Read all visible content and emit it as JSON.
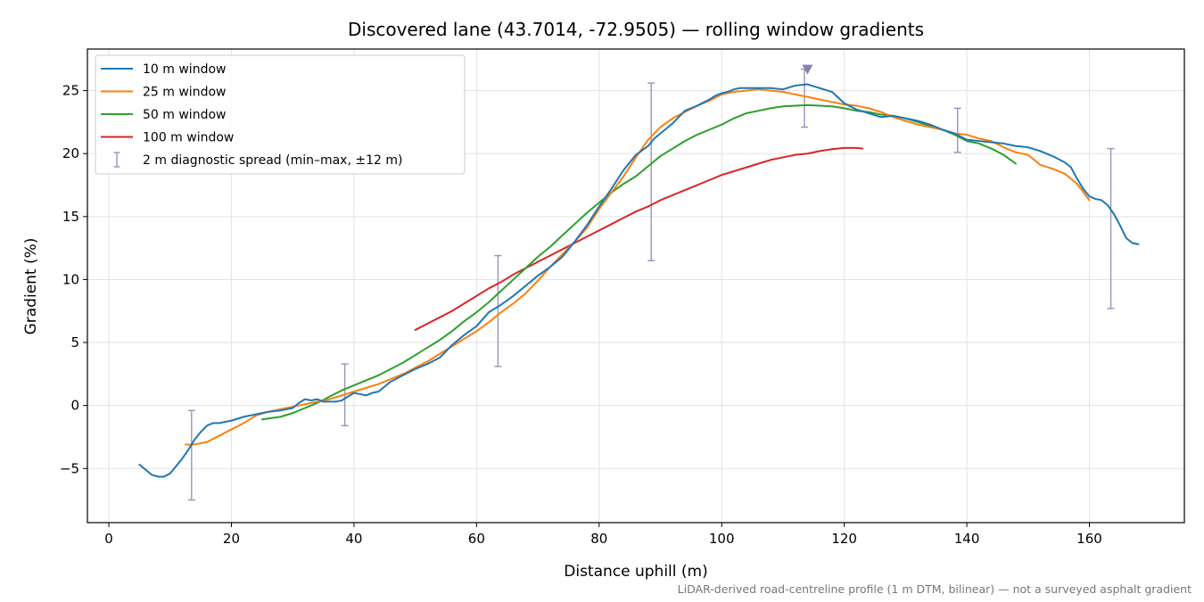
{
  "chart_data": {
    "type": "line",
    "title": "Discovered lane (43.7014, -72.9505) — rolling window gradients",
    "xlabel": "Distance uphill (m)",
    "ylabel": "Gradient (%)",
    "xlim": [
      -3.5,
      175.5
    ],
    "ylim": [
      -9.3,
      28.3
    ],
    "xticks": [
      0,
      20,
      40,
      60,
      80,
      100,
      120,
      140,
      160
    ],
    "yticks": [
      -5,
      0,
      5,
      10,
      15,
      20,
      25
    ],
    "grid": true,
    "legend_position": "top-left",
    "series": [
      {
        "name": "10 m window",
        "color": "#1f77b4",
        "x": [
          5,
          6,
          7,
          8,
          9,
          10,
          11,
          12,
          13,
          14,
          15,
          16,
          17,
          18,
          19,
          20,
          22,
          24,
          26,
          28,
          30,
          31,
          32,
          33,
          34,
          35,
          36,
          37,
          38,
          39,
          40,
          41,
          42,
          43,
          44,
          46,
          48,
          50,
          52,
          54,
          56,
          58,
          60,
          62,
          64,
          66,
          68,
          70,
          72,
          74,
          76,
          78,
          80,
          82,
          84,
          86,
          88,
          89,
          90,
          91,
          92,
          93,
          94,
          96,
          98,
          99,
          100,
          101,
          102,
          103,
          104,
          106,
          108,
          110,
          112,
          114,
          116,
          118,
          120,
          122,
          124,
          126,
          128,
          130,
          132,
          134,
          136,
          138,
          140,
          142,
          144,
          146,
          148,
          150,
          152,
          154,
          156,
          157,
          158,
          159,
          160,
          161,
          162,
          163,
          164,
          165,
          166,
          167,
          168
        ],
        "y": [
          -4.7,
          -5.1,
          -5.5,
          -5.65,
          -5.65,
          -5.4,
          -4.8,
          -4.2,
          -3.5,
          -2.7,
          -2.1,
          -1.6,
          -1.4,
          -1.4,
          -1.3,
          -1.2,
          -0.9,
          -0.7,
          -0.5,
          -0.4,
          -0.2,
          0.2,
          0.5,
          0.4,
          0.5,
          0.3,
          0.3,
          0.3,
          0.4,
          0.7,
          1.0,
          0.9,
          0.8,
          1.0,
          1.1,
          1.9,
          2.4,
          2.9,
          3.3,
          3.8,
          4.8,
          5.6,
          6.3,
          7.4,
          8.0,
          8.7,
          9.5,
          10.3,
          11.0,
          11.8,
          13.0,
          14.3,
          15.8,
          17.2,
          18.7,
          19.9,
          20.6,
          21.2,
          21.6,
          22.0,
          22.4,
          22.9,
          23.4,
          23.8,
          24.3,
          24.6,
          24.8,
          24.9,
          25.1,
          25.2,
          25.2,
          25.2,
          25.2,
          25.1,
          25.4,
          25.5,
          25.2,
          24.9,
          24.0,
          23.5,
          23.2,
          22.9,
          23.0,
          22.8,
          22.6,
          22.3,
          21.9,
          21.6,
          21.1,
          21.0,
          20.9,
          20.8,
          20.6,
          20.5,
          20.2,
          19.8,
          19.3,
          18.9,
          18.0,
          17.2,
          16.6,
          16.4,
          16.3,
          15.9,
          15.2,
          14.3,
          13.3,
          12.9,
          12.8
        ]
      },
      {
        "name": "25 m window",
        "color": "#ff7f0e",
        "x": [
          12.5,
          14,
          16,
          18,
          20,
          22,
          24,
          26,
          28,
          30,
          32,
          34,
          36,
          38,
          40,
          42,
          44,
          46,
          48,
          50,
          52,
          54,
          56,
          58,
          60,
          62,
          64,
          66,
          68,
          70,
          72,
          74,
          76,
          78,
          80,
          82,
          84,
          86,
          88,
          90,
          92,
          94,
          96,
          98,
          100,
          102,
          104,
          106,
          108,
          110,
          112,
          114,
          116,
          118,
          120,
          122,
          124,
          126,
          128,
          130,
          132,
          134,
          136,
          138,
          140,
          142,
          144,
          146,
          148,
          150,
          152,
          154,
          156,
          158,
          160
        ],
        "y": [
          -3.1,
          -3.1,
          -2.9,
          -2.4,
          -1.9,
          -1.4,
          -0.8,
          -0.5,
          -0.3,
          -0.1,
          0.1,
          0.3,
          0.5,
          0.8,
          1.1,
          1.4,
          1.7,
          2.1,
          2.5,
          3.0,
          3.5,
          4.1,
          4.7,
          5.3,
          5.9,
          6.6,
          7.4,
          8.1,
          8.9,
          9.9,
          11.0,
          12.0,
          13.0,
          14.1,
          15.6,
          16.9,
          18.2,
          19.7,
          21.1,
          22.1,
          22.8,
          23.3,
          23.8,
          24.2,
          24.7,
          24.9,
          25.0,
          25.1,
          25.0,
          24.9,
          24.7,
          24.5,
          24.3,
          24.1,
          23.9,
          23.8,
          23.6,
          23.3,
          22.9,
          22.6,
          22.3,
          22.1,
          21.9,
          21.6,
          21.5,
          21.2,
          21.0,
          20.5,
          20.1,
          19.9,
          19.1,
          18.8,
          18.4,
          17.6,
          16.3
        ]
      },
      {
        "name": "50 m window",
        "color": "#2ca02c",
        "x": [
          25,
          28,
          30,
          32,
          34,
          36,
          38,
          40,
          42,
          44,
          46,
          48,
          50,
          52,
          54,
          56,
          58,
          60,
          62,
          64,
          66,
          68,
          70,
          72,
          74,
          76,
          78,
          80,
          82,
          84,
          86,
          88,
          90,
          92,
          94,
          96,
          98,
          100,
          102,
          104,
          106,
          108,
          110,
          112,
          114,
          116,
          118,
          120,
          122,
          124,
          126,
          128,
          130,
          132,
          134,
          136,
          138,
          140,
          142,
          144,
          146,
          148
        ],
        "y": [
          -1.1,
          -0.9,
          -0.6,
          -0.2,
          0.2,
          0.7,
          1.2,
          1.6,
          2.0,
          2.4,
          2.9,
          3.4,
          4.0,
          4.6,
          5.2,
          5.9,
          6.7,
          7.4,
          8.2,
          9.1,
          10.0,
          10.9,
          11.8,
          12.6,
          13.5,
          14.4,
          15.3,
          16.1,
          16.9,
          17.6,
          18.2,
          19.0,
          19.8,
          20.4,
          21.0,
          21.5,
          21.9,
          22.3,
          22.8,
          23.2,
          23.4,
          23.6,
          23.75,
          23.8,
          23.85,
          23.8,
          23.75,
          23.6,
          23.4,
          23.3,
          23.1,
          23.0,
          22.8,
          22.5,
          22.2,
          21.9,
          21.5,
          21.0,
          20.8,
          20.4,
          19.9,
          19.2
        ]
      },
      {
        "name": "100 m window",
        "color": "#d62728",
        "x": [
          50,
          52,
          54,
          56,
          58,
          60,
          62,
          64,
          66,
          68,
          70,
          72,
          74,
          76,
          78,
          80,
          82,
          84,
          86,
          88,
          90,
          92,
          94,
          96,
          98,
          100,
          102,
          104,
          106,
          108,
          110,
          112,
          114,
          116,
          118,
          120,
          122,
          123
        ],
        "y": [
          6.0,
          6.5,
          7.0,
          7.5,
          8.1,
          8.7,
          9.3,
          9.8,
          10.4,
          10.9,
          11.4,
          11.9,
          12.4,
          12.9,
          13.4,
          13.9,
          14.4,
          14.9,
          15.4,
          15.8,
          16.3,
          16.7,
          17.1,
          17.5,
          17.9,
          18.3,
          18.6,
          18.9,
          19.2,
          19.5,
          19.7,
          19.9,
          20.0,
          20.2,
          20.35,
          20.45,
          20.45,
          20.4
        ]
      }
    ],
    "error_bars": {
      "name": "2 m diagnostic spread (min–max, ±12 m)",
      "color": "#9a92b8",
      "bars": [
        {
          "x": 13.5,
          "low": -7.5,
          "high": -0.4
        },
        {
          "x": 38.5,
          "low": -1.6,
          "high": 3.3
        },
        {
          "x": 63.5,
          "low": 3.1,
          "high": 11.9
        },
        {
          "x": 88.5,
          "low": 11.5,
          "high": 25.6
        },
        {
          "x": 113.5,
          "low": 22.1,
          "high": 26.7
        },
        {
          "x": 138.5,
          "low": 20.1,
          "high": 23.6
        },
        {
          "x": 163.5,
          "low": 7.7,
          "high": 20.4
        }
      ]
    },
    "peak_marker": {
      "x": 114,
      "y": 26.7,
      "color": "#8b7cb0"
    },
    "footnote": "LiDAR-derived road-centreline profile (1 m DTM, bilinear) — not a surveyed asphalt gradient"
  }
}
